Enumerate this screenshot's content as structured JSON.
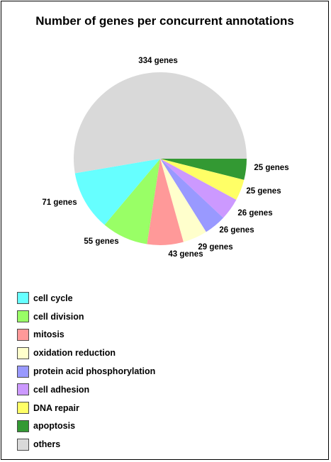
{
  "chart_data": {
    "type": "pie",
    "title": "Number of genes per concurrent annotations",
    "slices": [
      {
        "name": "apoptosis",
        "value": 25,
        "label": "25 genes",
        "color": "#339933"
      },
      {
        "name": "DNA repair",
        "value": 25,
        "label": "25 genes",
        "color": "#ffff66"
      },
      {
        "name": "cell adhesion",
        "value": 26,
        "label": "26 genes",
        "color": "#cc99ff"
      },
      {
        "name": "protein acid phosphorylation",
        "value": 26,
        "label": "26 genes",
        "color": "#9999ff"
      },
      {
        "name": "oxidation reduction",
        "value": 29,
        "label": "29 genes",
        "color": "#ffffcc"
      },
      {
        "name": "mitosis",
        "value": 43,
        "label": "43 genes",
        "color": "#ff9999"
      },
      {
        "name": "cell division",
        "value": 55,
        "label": "55 genes",
        "color": "#99ff66"
      },
      {
        "name": "cell cycle",
        "value": 71,
        "label": "71 genes",
        "color": "#66ffff"
      },
      {
        "name": "others",
        "value": 334,
        "label": "334 genes",
        "color": "#d9d9d9"
      }
    ],
    "legend": {
      "placement": "bottom-left",
      "items": [
        {
          "label": "cell cycle",
          "color": "#66ffff"
        },
        {
          "label": "cell division",
          "color": "#99ff66"
        },
        {
          "label": "mitosis",
          "color": "#ff9999"
        },
        {
          "label": "oxidation reduction",
          "color": "#ffffcc"
        },
        {
          "label": "protein acid phosphorylation",
          "color": "#9999ff"
        },
        {
          "label": "cell adhesion",
          "color": "#cc99ff"
        },
        {
          "label": "DNA repair",
          "color": "#ffff66"
        },
        {
          "label": "apoptosis",
          "color": "#339933"
        },
        {
          "label": "others",
          "color": "#d9d9d9"
        }
      ]
    }
  }
}
